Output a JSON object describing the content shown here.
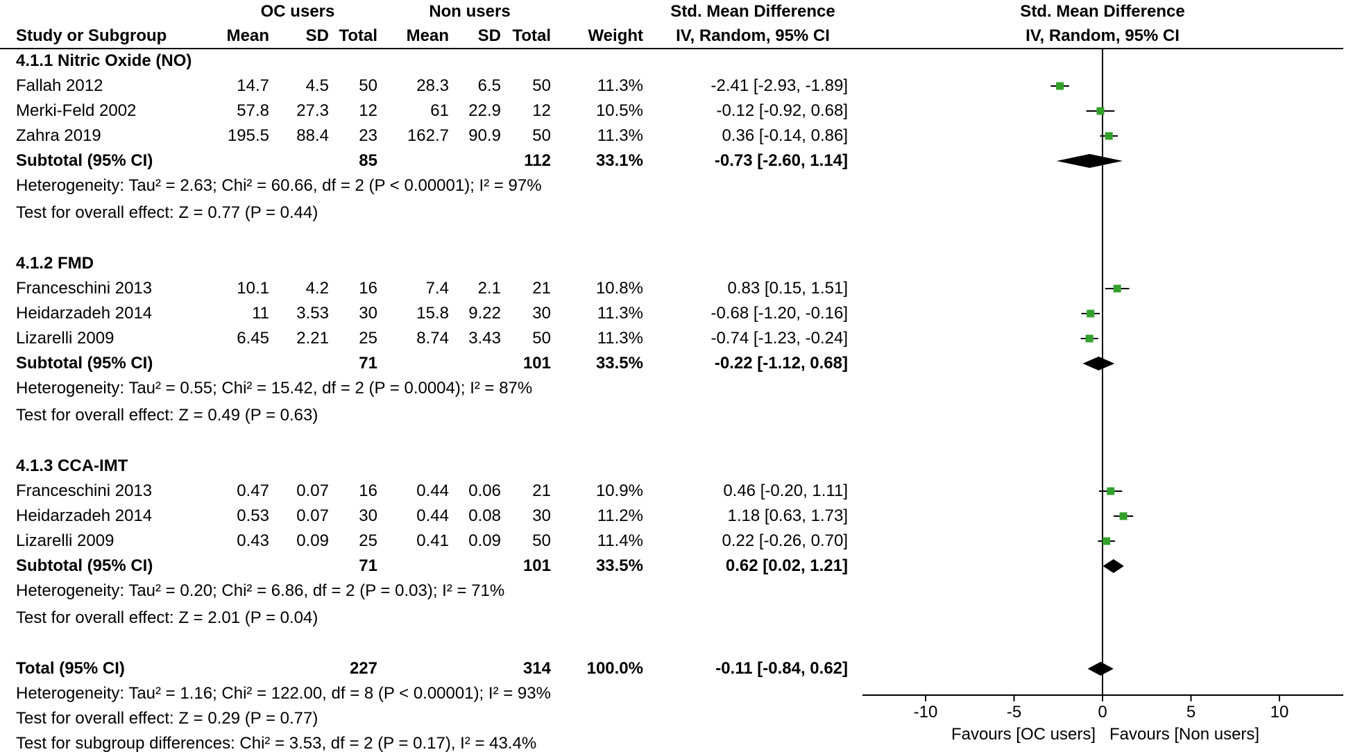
{
  "header": {
    "group_oc": "OC users",
    "group_non": "Non users",
    "smd_text_col": "Std. Mean Difference",
    "smd_plot_col": "Std. Mean Difference",
    "col_study": "Study or Subgroup",
    "col_mean": "Mean",
    "col_sd": "SD",
    "col_total": "Total",
    "col_weight": "Weight",
    "col_ci": "IV, Random, 95% CI",
    "col_ci_plot": "IV, Random, 95% CI"
  },
  "chart_data": {
    "type": "forest",
    "effect_measure": "Std. Mean Difference, IV, Random, 95% CI",
    "axis": {
      "ticks": [
        -10,
        -5,
        0,
        5,
        10
      ],
      "xlim": [
        -13.5,
        13.5
      ],
      "favours_left": "Favours [OC users]",
      "favours_right": "Favours [Non users]"
    },
    "colors": {
      "marker": "#33a02c",
      "diamond": "#000000",
      "line": "#000000",
      "text": "#000000"
    },
    "rows": [
      {
        "kind": "subgroup",
        "label": "4.1.1 Nitric Oxide (NO)"
      },
      {
        "kind": "study",
        "study": "Fallah 2012",
        "mean1": "14.7",
        "sd1": "4.5",
        "total1": "50",
        "mean2": "28.3",
        "sd2": "6.5",
        "total2": "50",
        "weight": "11.3%",
        "ci": "-2.41 [-2.93, -1.89]",
        "est": -2.41,
        "lo": -2.93,
        "hi": -1.89
      },
      {
        "kind": "study",
        "study": "Merki-Feld 2002",
        "mean1": "57.8",
        "sd1": "27.3",
        "total1": "12",
        "mean2": "61",
        "sd2": "22.9",
        "total2": "12",
        "weight": "10.5%",
        "ci": "-0.12 [-0.92, 0.68]",
        "est": -0.12,
        "lo": -0.92,
        "hi": 0.68
      },
      {
        "kind": "study",
        "study": "Zahra 2019",
        "mean1": "195.5",
        "sd1": "88.4",
        "total1": "23",
        "mean2": "162.7",
        "sd2": "90.9",
        "total2": "50",
        "weight": "11.3%",
        "ci": "0.36 [-0.14, 0.86]",
        "est": 0.36,
        "lo": -0.14,
        "hi": 0.86
      },
      {
        "kind": "subtotal",
        "study": "Subtotal (95% CI)",
        "total1": "85",
        "total2": "112",
        "weight": "33.1%",
        "ci": "-0.73 [-2.60, 1.14]",
        "est": -0.73,
        "lo": -2.6,
        "hi": 1.14
      },
      {
        "kind": "note",
        "label": "Heterogeneity: Tau² = 2.63; Chi² = 60.66, df = 2 (P < 0.00001); I² = 97%"
      },
      {
        "kind": "test",
        "label": "Test for overall effect: Z = 0.77 (P = 0.44)"
      },
      {
        "kind": "spacer"
      },
      {
        "kind": "subgroup",
        "label": "4.1.2 FMD"
      },
      {
        "kind": "study",
        "study": "Franceschini 2013",
        "mean1": "10.1",
        "sd1": "4.2",
        "total1": "16",
        "mean2": "7.4",
        "sd2": "2.1",
        "total2": "21",
        "weight": "10.8%",
        "ci": "0.83 [0.15, 1.51]",
        "est": 0.83,
        "lo": 0.15,
        "hi": 1.51
      },
      {
        "kind": "study",
        "study": "Heidarzadeh 2014",
        "mean1": "11",
        "sd1": "3.53",
        "total1": "30",
        "mean2": "15.8",
        "sd2": "9.22",
        "total2": "30",
        "weight": "11.3%",
        "ci": "-0.68 [-1.20, -0.16]",
        "est": -0.68,
        "lo": -1.2,
        "hi": -0.16
      },
      {
        "kind": "study",
        "study": "Lizarelli 2009",
        "mean1": "6.45",
        "sd1": "2.21",
        "total1": "25",
        "mean2": "8.74",
        "sd2": "3.43",
        "total2": "50",
        "weight": "11.3%",
        "ci": "-0.74 [-1.23, -0.24]",
        "est": -0.74,
        "lo": -1.23,
        "hi": -0.24
      },
      {
        "kind": "subtotal",
        "study": "Subtotal (95% CI)",
        "total1": "71",
        "total2": "101",
        "weight": "33.5%",
        "ci": "-0.22 [-1.12, 0.68]",
        "est": -0.22,
        "lo": -1.12,
        "hi": 0.68
      },
      {
        "kind": "note",
        "label": "Heterogeneity: Tau² = 0.55; Chi² = 15.42, df = 2 (P = 0.0004); I² = 87%"
      },
      {
        "kind": "test",
        "label": "Test for overall effect: Z = 0.49 (P = 0.63)"
      },
      {
        "kind": "spacer"
      },
      {
        "kind": "subgroup",
        "label": "4.1.3 CCA-IMT"
      },
      {
        "kind": "study",
        "study": "Franceschini 2013",
        "mean1": "0.47",
        "sd1": "0.07",
        "total1": "16",
        "mean2": "0.44",
        "sd2": "0.06",
        "total2": "21",
        "weight": "10.9%",
        "ci": "0.46 [-0.20, 1.11]",
        "est": 0.46,
        "lo": -0.2,
        "hi": 1.11
      },
      {
        "kind": "study",
        "study": "Heidarzadeh 2014",
        "mean1": "0.53",
        "sd1": "0.07",
        "total1": "30",
        "mean2": "0.44",
        "sd2": "0.08",
        "total2": "30",
        "weight": "11.2%",
        "ci": "1.18 [0.63, 1.73]",
        "est": 1.18,
        "lo": 0.63,
        "hi": 1.73
      },
      {
        "kind": "study",
        "study": "Lizarelli 2009",
        "mean1": "0.43",
        "sd1": "0.09",
        "total1": "25",
        "mean2": "0.41",
        "sd2": "0.09",
        "total2": "50",
        "weight": "11.4%",
        "ci": "0.22 [-0.26, 0.70]",
        "est": 0.22,
        "lo": -0.26,
        "hi": 0.7
      },
      {
        "kind": "subtotal",
        "study": "Subtotal (95% CI)",
        "total1": "71",
        "total2": "101",
        "weight": "33.5%",
        "ci": "0.62 [0.02, 1.21]",
        "est": 0.62,
        "lo": 0.02,
        "hi": 1.21
      },
      {
        "kind": "note",
        "label": "Heterogeneity: Tau² = 0.20; Chi² = 6.86, df = 2 (P = 0.03); I² = 71%"
      },
      {
        "kind": "test",
        "label": "Test for overall effect: Z = 2.01 (P = 0.04)"
      },
      {
        "kind": "spacer"
      },
      {
        "kind": "total",
        "study": "Total (95% CI)",
        "total1": "227",
        "total2": "314",
        "weight": "100.0%",
        "ci": "-0.11 [-0.84, 0.62]",
        "est": -0.11,
        "lo": -0.84,
        "hi": 0.62
      },
      {
        "kind": "note",
        "label": "Heterogeneity: Tau² = 1.16; Chi² = 122.00, df = 8 (P < 0.00001); I² = 93%"
      },
      {
        "kind": "note",
        "label": "Test for overall effect: Z = 0.29 (P = 0.77)"
      },
      {
        "kind": "note",
        "label": "Test for subgroup differences: Chi² = 3.53, df = 2 (P = 0.17), I² = 43.4%"
      }
    ]
  }
}
